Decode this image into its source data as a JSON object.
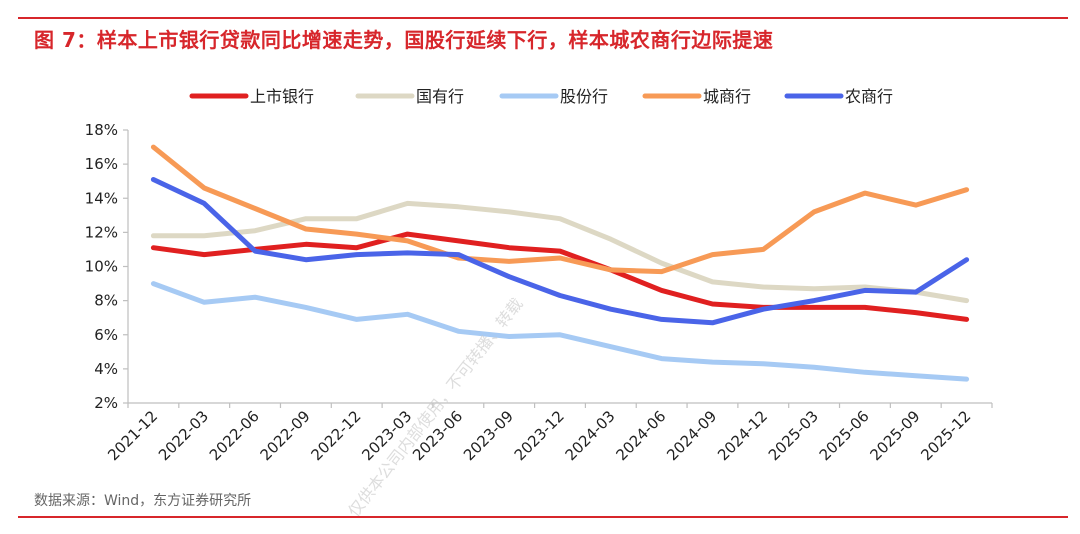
{
  "header": {
    "title": "图 7：样本上市银行贷款同比增速走势，国股行延续下行，样本城农商行边际提速"
  },
  "footer": {
    "source": "数据来源：Wind，东方证券研究所"
  },
  "watermark": "仅供本公司内部使用，不可转播、转载",
  "chart_data": {
    "type": "line",
    "title": "",
    "xlabel": "",
    "ylabel": "",
    "ylim": [
      0.02,
      0.18
    ],
    "yticks": [
      "18%",
      "16%",
      "14%",
      "12%",
      "10%",
      "8%",
      "6%",
      "4%",
      "2%"
    ],
    "ytick_values": [
      0.18,
      0.16,
      0.14,
      0.12,
      0.1,
      0.08,
      0.06,
      0.04,
      0.02
    ],
    "categories": [
      "2021-12",
      "2022-03",
      "2022-06",
      "2022-09",
      "2022-12",
      "2023-03",
      "2023-06",
      "2023-09",
      "2023-12",
      "2024-03",
      "2024-06",
      "2024-09",
      "2024-12",
      "2025-03",
      "2025-06",
      "2025-09",
      "2025-12"
    ],
    "legend_position": "top",
    "series": [
      {
        "name": "上市银行",
        "color": "#e02020",
        "values": [
          0.111,
          0.107,
          0.11,
          0.113,
          0.111,
          0.119,
          0.115,
          0.111,
          0.109,
          0.098,
          0.086,
          0.078,
          0.076,
          0.076,
          0.076,
          0.073,
          0.069
        ]
      },
      {
        "name": "国有行",
        "color": "#ddd8c4",
        "values": [
          0.118,
          0.118,
          0.121,
          0.128,
          0.128,
          0.137,
          0.135,
          0.132,
          0.128,
          0.116,
          0.102,
          0.091,
          0.088,
          0.087,
          0.088,
          0.085,
          0.08
        ]
      },
      {
        "name": "股份行",
        "color": "#a6caf4",
        "values": [
          0.09,
          0.079,
          0.082,
          0.076,
          0.069,
          0.072,
          0.062,
          0.059,
          0.06,
          0.053,
          0.046,
          0.044,
          0.043,
          0.041,
          0.038,
          0.036,
          0.034
        ]
      },
      {
        "name": "城商行",
        "color": "#f79a56",
        "values": [
          0.17,
          0.146,
          0.134,
          0.122,
          0.119,
          0.115,
          0.105,
          0.103,
          0.105,
          0.098,
          0.097,
          0.107,
          0.11,
          0.132,
          0.143,
          0.136,
          0.145
        ]
      },
      {
        "name": "农商行",
        "color": "#4a64e8",
        "values": [
          0.151,
          0.137,
          0.109,
          0.104,
          0.107,
          0.108,
          0.107,
          0.094,
          0.083,
          0.075,
          0.069,
          0.067,
          0.075,
          0.08,
          0.086,
          0.085,
          0.104
        ]
      }
    ]
  }
}
